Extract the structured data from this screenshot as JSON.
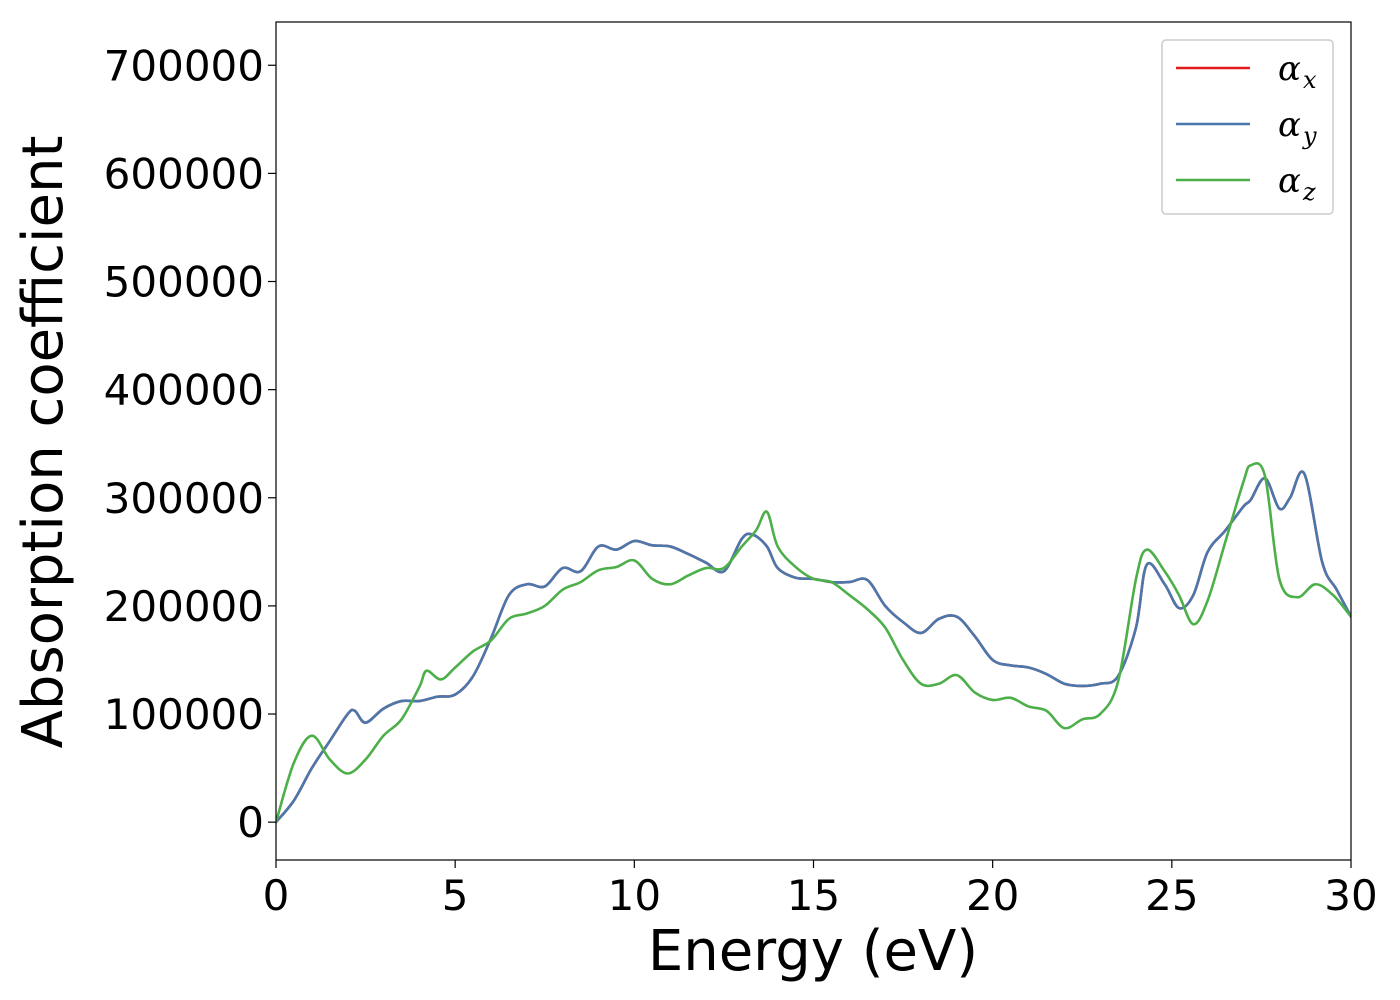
{
  "chart_data": {
    "type": "line",
    "xlabel": "Energy (eV)",
    "ylabel": "Absorption coefficient",
    "xlim": [
      0,
      30
    ],
    "ylim": [
      -35000,
      740000
    ],
    "xticks": [
      0,
      5,
      10,
      15,
      20,
      25,
      30
    ],
    "yticks": [
      0,
      100000,
      200000,
      300000,
      400000,
      500000,
      600000,
      700000
    ],
    "grid": false,
    "legend_position": "top-right",
    "series": [
      {
        "name": "αx",
        "symbol": "α",
        "subscript": "x",
        "color": "#e41a1c",
        "x": [
          0,
          0.5,
          1,
          1.5,
          2,
          2.2,
          2.5,
          3,
          3.5,
          4,
          4.5,
          5,
          5.5,
          6,
          6.5,
          7,
          7.5,
          8,
          8.5,
          9,
          9.5,
          10,
          10.5,
          11,
          11.5,
          12,
          12.5,
          13,
          13.3,
          13.7,
          14,
          14.5,
          15,
          15.5,
          16,
          16.5,
          17,
          17.5,
          18,
          18.5,
          19,
          19.5,
          20,
          20.5,
          21,
          21.5,
          22,
          22.5,
          23,
          23.5,
          24,
          24.3,
          24.8,
          25.2,
          25.6,
          26,
          26.5,
          27,
          27.2,
          27.6,
          28,
          28.3,
          28.7,
          29.2,
          29.6,
          30
        ],
        "y": [
          0,
          20000,
          50000,
          75000,
          100000,
          103000,
          92000,
          105000,
          112000,
          112000,
          116000,
          118000,
          135000,
          170000,
          210000,
          220000,
          218000,
          235000,
          232000,
          255000,
          252000,
          260000,
          256000,
          255000,
          248000,
          240000,
          232000,
          262000,
          266000,
          255000,
          235000,
          226000,
          225000,
          222000,
          222000,
          224000,
          200000,
          185000,
          175000,
          188000,
          190000,
          172000,
          150000,
          145000,
          143000,
          137000,
          128000,
          126000,
          128000,
          135000,
          180000,
          238000,
          220000,
          198000,
          210000,
          250000,
          270000,
          292000,
          298000,
          318000,
          290000,
          300000,
          322000,
          240000,
          215000,
          190000
        ]
      },
      {
        "name": "αy",
        "symbol": "α",
        "subscript": "y",
        "color": "#4a78ad",
        "x": [
          0,
          0.5,
          1,
          1.5,
          2,
          2.2,
          2.5,
          3,
          3.5,
          4,
          4.5,
          5,
          5.5,
          6,
          6.5,
          7,
          7.5,
          8,
          8.5,
          9,
          9.5,
          10,
          10.5,
          11,
          11.5,
          12,
          12.5,
          13,
          13.3,
          13.7,
          14,
          14.5,
          15,
          15.5,
          16,
          16.5,
          17,
          17.5,
          18,
          18.5,
          19,
          19.5,
          20,
          20.5,
          21,
          21.5,
          22,
          22.5,
          23,
          23.5,
          24,
          24.3,
          24.8,
          25.2,
          25.6,
          26,
          26.5,
          27,
          27.2,
          27.6,
          28,
          28.3,
          28.7,
          29.2,
          29.6,
          30
        ],
        "y": [
          0,
          20000,
          50000,
          75000,
          100000,
          103000,
          92000,
          105000,
          112000,
          112000,
          116000,
          118000,
          135000,
          170000,
          210000,
          220000,
          218000,
          235000,
          232000,
          255000,
          252000,
          260000,
          256000,
          255000,
          248000,
          240000,
          232000,
          262000,
          266000,
          255000,
          235000,
          226000,
          225000,
          222000,
          222000,
          224000,
          200000,
          185000,
          175000,
          188000,
          190000,
          172000,
          150000,
          145000,
          143000,
          137000,
          128000,
          126000,
          128000,
          135000,
          180000,
          238000,
          220000,
          198000,
          210000,
          250000,
          270000,
          292000,
          298000,
          318000,
          290000,
          300000,
          322000,
          240000,
          215000,
          190000
        ]
      },
      {
        "name": "αz",
        "symbol": "α",
        "subscript": "z",
        "color": "#4daf4a",
        "x": [
          0,
          0.5,
          1,
          1.5,
          2,
          2.5,
          3,
          3.5,
          4,
          4.2,
          4.6,
          5,
          5.5,
          6,
          6.5,
          7,
          7.5,
          8,
          8.5,
          9,
          9.5,
          10,
          10.5,
          11,
          11.5,
          12,
          12.5,
          13,
          13.4,
          13.7,
          14,
          14.5,
          15,
          15.5,
          16,
          16.5,
          17,
          17.5,
          18,
          18.5,
          19,
          19.5,
          20,
          20.5,
          21,
          21.5,
          22,
          22.5,
          23,
          23.5,
          24,
          24.3,
          24.8,
          25.2,
          25.6,
          26,
          26.5,
          27,
          27.2,
          27.6,
          28,
          28.5,
          29,
          29.5,
          30
        ],
        "y": [
          0,
          55000,
          80000,
          58000,
          45000,
          58000,
          80000,
          95000,
          125000,
          140000,
          132000,
          143000,
          158000,
          168000,
          188000,
          193000,
          200000,
          215000,
          222000,
          233000,
          236000,
          242000,
          225000,
          220000,
          228000,
          235000,
          235000,
          255000,
          270000,
          287000,
          255000,
          236000,
          225000,
          222000,
          210000,
          197000,
          180000,
          150000,
          128000,
          128000,
          136000,
          120000,
          113000,
          115000,
          107000,
          103000,
          87000,
          95000,
          100000,
          130000,
          225000,
          252000,
          232000,
          210000,
          183000,
          205000,
          260000,
          315000,
          330000,
          320000,
          225000,
          208000,
          220000,
          210000,
          190000
        ]
      }
    ]
  }
}
